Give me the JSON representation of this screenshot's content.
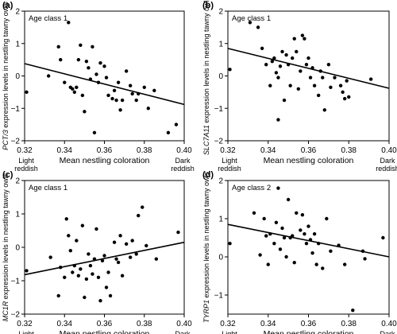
{
  "figure": {
    "x_axis_label": "Mean nestling coloration",
    "x_end_labels": {
      "left": [
        "Light",
        "reddish"
      ],
      "right": [
        "Dark",
        "reddish"
      ]
    }
  },
  "chart_data": [
    {
      "type": "scatter",
      "panel_letter": "(a)",
      "age_class": "Age class 1",
      "ylabel": "PCT/3 expression levels in nestling tawny owls",
      "gene": "PCT/3",
      "ylabel_rest": " expression levels in nestling tawny owls",
      "xlim": [
        0.32,
        0.4
      ],
      "ylim": [
        -2,
        2
      ],
      "xticks": [
        "0.32",
        "0.34",
        "0.36",
        "0.38",
        "0.40"
      ],
      "yticks": [
        "-2",
        "-1",
        "0",
        "1",
        "2"
      ],
      "trendline": [
        [
          0.32,
          0.38
        ],
        [
          0.4,
          -0.88
        ]
      ],
      "points": [
        [
          0.321,
          -0.5
        ],
        [
          0.332,
          0.0
        ],
        [
          0.337,
          0.9
        ],
        [
          0.338,
          0.5
        ],
        [
          0.34,
          -0.2
        ],
        [
          0.342,
          1.65
        ],
        [
          0.343,
          -0.35
        ],
        [
          0.344,
          -0.4
        ],
        [
          0.345,
          -0.5
        ],
        [
          0.346,
          -0.35
        ],
        [
          0.347,
          0.5
        ],
        [
          0.348,
          0.95
        ],
        [
          0.349,
          -0.6
        ],
        [
          0.35,
          -1.1
        ],
        [
          0.351,
          0.45
        ],
        [
          0.352,
          0.25
        ],
        [
          0.353,
          -0.1
        ],
        [
          0.354,
          0.9
        ],
        [
          0.355,
          -1.75
        ],
        [
          0.356,
          0.05
        ],
        [
          0.357,
          -0.2
        ],
        [
          0.358,
          0.4
        ],
        [
          0.36,
          0.3
        ],
        [
          0.361,
          -0.05
        ],
        [
          0.362,
          -0.6
        ],
        [
          0.364,
          -0.7
        ],
        [
          0.365,
          -0.45
        ],
        [
          0.366,
          -0.75
        ],
        [
          0.367,
          -0.2
        ],
        [
          0.368,
          -1.05
        ],
        [
          0.369,
          -0.75
        ],
        [
          0.371,
          0.15
        ],
        [
          0.373,
          -0.3
        ],
        [
          0.374,
          -0.55
        ],
        [
          0.376,
          -0.75
        ],
        [
          0.377,
          -0.55
        ],
        [
          0.38,
          -0.35
        ],
        [
          0.382,
          -1.0
        ],
        [
          0.385,
          -0.45
        ],
        [
          0.392,
          -1.75
        ],
        [
          0.396,
          -1.5
        ]
      ]
    },
    {
      "type": "scatter",
      "panel_letter": "(b)",
      "age_class": "Age class 1",
      "ylabel": "SLC7A11 expression levels in nestling tawny owls",
      "gene": "SLC7A11",
      "ylabel_rest": " expression levels in nestling tawny owls",
      "xlim": [
        0.32,
        0.4
      ],
      "ylim": [
        -2,
        2
      ],
      "xticks": [
        "0.32",
        "0.34",
        "0.36",
        "0.38",
        "0.40"
      ],
      "yticks": [
        "-2",
        "-1",
        "0",
        "1",
        "2"
      ],
      "trendline": [
        [
          0.32,
          0.85
        ],
        [
          0.4,
          -0.38
        ]
      ],
      "points": [
        [
          0.321,
          0.2
        ],
        [
          0.331,
          1.65
        ],
        [
          0.335,
          1.5
        ],
        [
          0.337,
          0.85
        ],
        [
          0.339,
          0.35
        ],
        [
          0.341,
          -0.3
        ],
        [
          0.342,
          0.45
        ],
        [
          0.343,
          0.55
        ],
        [
          0.344,
          0.1
        ],
        [
          0.345,
          -0.05
        ],
        [
          0.345,
          -1.35
        ],
        [
          0.346,
          0.3
        ],
        [
          0.347,
          0.75
        ],
        [
          0.348,
          -0.75
        ],
        [
          0.349,
          0.65
        ],
        [
          0.35,
          0.35
        ],
        [
          0.351,
          -0.3
        ],
        [
          0.352,
          0.55
        ],
        [
          0.353,
          1.15
        ],
        [
          0.354,
          0.75
        ],
        [
          0.355,
          -0.4
        ],
        [
          0.356,
          0.15
        ],
        [
          0.357,
          1.25
        ],
        [
          0.358,
          1.15
        ],
        [
          0.359,
          0.35
        ],
        [
          0.36,
          0.55
        ],
        [
          0.361,
          -0.05
        ],
        [
          0.362,
          0.25
        ],
        [
          0.363,
          -0.3
        ],
        [
          0.365,
          -0.6
        ],
        [
          0.366,
          0.15
        ],
        [
          0.367,
          -0.05
        ],
        [
          0.368,
          -1.05
        ],
        [
          0.37,
          0.35
        ],
        [
          0.371,
          -0.35
        ],
        [
          0.373,
          -0.05
        ],
        [
          0.376,
          -0.3
        ],
        [
          0.377,
          -0.5
        ],
        [
          0.378,
          -0.7
        ],
        [
          0.379,
          -0.15
        ],
        [
          0.38,
          -0.65
        ],
        [
          0.391,
          -0.1
        ]
      ]
    },
    {
      "type": "scatter",
      "panel_letter": "(c)",
      "age_class": "Age class 1",
      "ylabel": "MC1R expression levels in nestling tawny owls",
      "gene": "MC1R",
      "ylabel_rest": " expression levels in nestling tawny owls",
      "xlim": [
        0.32,
        0.4
      ],
      "ylim": [
        -2,
        2
      ],
      "xticks": [
        "0.32",
        "0.34",
        "0.36",
        "0.38",
        "0.40"
      ],
      "yticks": [
        "-2",
        "-1",
        "0",
        "1",
        "2"
      ],
      "trendline": [
        [
          0.32,
          -0.82
        ],
        [
          0.4,
          0.15
        ]
      ],
      "points": [
        [
          0.321,
          -0.7
        ],
        [
          0.333,
          -0.3
        ],
        [
          0.337,
          -1.45
        ],
        [
          0.338,
          -0.6
        ],
        [
          0.34,
          -0.9
        ],
        [
          0.341,
          0.85
        ],
        [
          0.342,
          0.35
        ],
        [
          0.343,
          -0.1
        ],
        [
          0.344,
          -0.75
        ],
        [
          0.345,
          -0.55
        ],
        [
          0.346,
          0.2
        ],
        [
          0.347,
          -0.85
        ],
        [
          0.348,
          -0.65
        ],
        [
          0.349,
          0.65
        ],
        [
          0.35,
          -1.5
        ],
        [
          0.351,
          -0.95
        ],
        [
          0.352,
          -0.2
        ],
        [
          0.353,
          -0.55
        ],
        [
          0.354,
          -0.8
        ],
        [
          0.355,
          -0.35
        ],
        [
          0.356,
          0.55
        ],
        [
          0.357,
          -0.9
        ],
        [
          0.358,
          -1.6
        ],
        [
          0.359,
          -0.4
        ],
        [
          0.36,
          -0.25
        ],
        [
          0.361,
          -1.2
        ],
        [
          0.362,
          -0.75
        ],
        [
          0.363,
          -1.45
        ],
        [
          0.365,
          0.15
        ],
        [
          0.366,
          -0.35
        ],
        [
          0.367,
          -0.45
        ],
        [
          0.368,
          0.35
        ],
        [
          0.369,
          -0.85
        ],
        [
          0.371,
          0.1
        ],
        [
          0.373,
          -0.3
        ],
        [
          0.374,
          0.2
        ],
        [
          0.376,
          -0.2
        ],
        [
          0.377,
          0.95
        ],
        [
          0.379,
          1.2
        ],
        [
          0.381,
          0.05
        ],
        [
          0.386,
          -0.35
        ],
        [
          0.397,
          0.45
        ]
      ]
    },
    {
      "type": "scatter",
      "panel_letter": "(d)",
      "age_class": "Age class 2",
      "ylabel": "TYRP1 expression levels in nestling tawny owls",
      "gene": "TYRP1",
      "ylabel_rest": " expression levels in nestling tawny owls",
      "xlim": [
        0.32,
        0.4
      ],
      "ylim": [
        -1.5,
        2
      ],
      "xticks": [
        "0.32",
        "0.34",
        "0.36",
        "0.38",
        "0.40"
      ],
      "yticks": [
        "-1",
        "0",
        "1",
        "2"
      ],
      "trendline": [
        [
          0.32,
          0.85
        ],
        [
          0.4,
          0.0
        ]
      ],
      "points": [
        [
          0.321,
          0.35
        ],
        [
          0.333,
          1.15
        ],
        [
          0.336,
          0.05
        ],
        [
          0.338,
          1.0
        ],
        [
          0.339,
          0.55
        ],
        [
          0.34,
          -0.2
        ],
        [
          0.341,
          0.6
        ],
        [
          0.343,
          0.35
        ],
        [
          0.344,
          0.9
        ],
        [
          0.345,
          1.8
        ],
        [
          0.346,
          0.2
        ],
        [
          0.347,
          0.75
        ],
        [
          0.348,
          0.5
        ],
        [
          0.349,
          0.0
        ],
        [
          0.35,
          1.5
        ],
        [
          0.351,
          0.5
        ],
        [
          0.352,
          0.55
        ],
        [
          0.353,
          -0.15
        ],
        [
          0.354,
          1.15
        ],
        [
          0.356,
          0.7
        ],
        [
          0.357,
          1.1
        ],
        [
          0.358,
          0.6
        ],
        [
          0.359,
          0.35
        ],
        [
          0.36,
          0.8
        ],
        [
          0.361,
          0.45
        ],
        [
          0.362,
          0.1
        ],
        [
          0.363,
          0.6
        ],
        [
          0.364,
          -0.2
        ],
        [
          0.365,
          0.35
        ],
        [
          0.367,
          -0.3
        ],
        [
          0.369,
          1.0
        ],
        [
          0.371,
          0.15
        ],
        [
          0.375,
          0.3
        ],
        [
          0.378,
          -0.2
        ],
        [
          0.382,
          -1.4
        ],
        [
          0.387,
          0.15
        ],
        [
          0.388,
          -0.05
        ],
        [
          0.397,
          0.5
        ]
      ]
    }
  ]
}
